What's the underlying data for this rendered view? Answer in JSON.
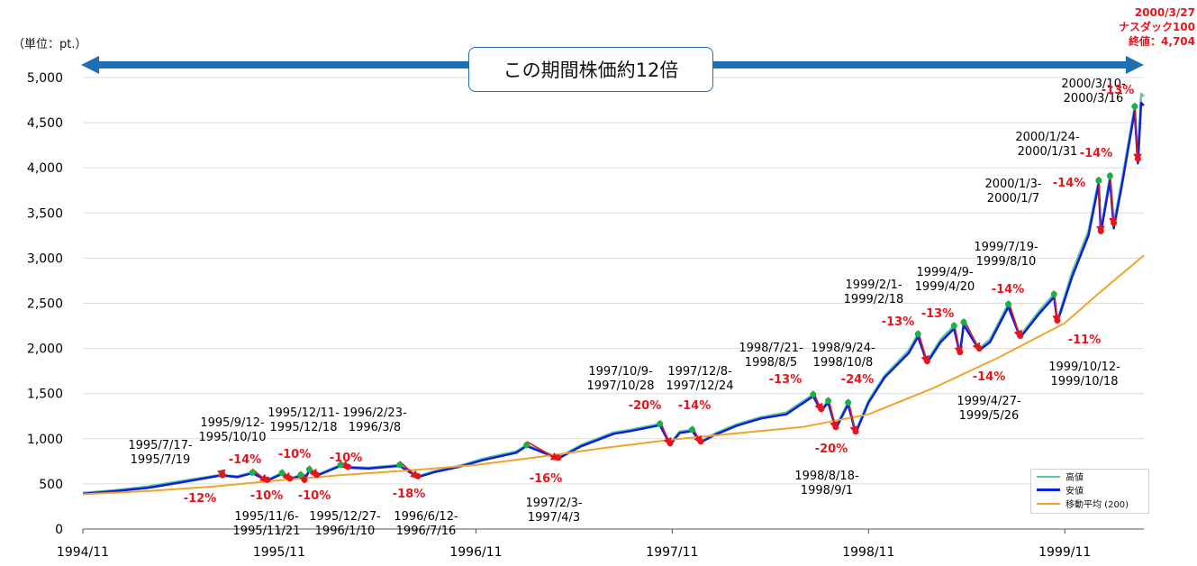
{
  "unit_label": "（単位：pt.）",
  "callout": "この期間株価約12倍",
  "final_note": [
    "2000/3/27",
    "ナスダック100",
    "終値：4,704"
  ],
  "legend": [
    {
      "label": "高値",
      "color": "#5fc3a6"
    },
    {
      "label": "安値",
      "color": "#0a1fe0"
    },
    {
      "label": "移動平均 (200)",
      "color": "#f2a32a"
    }
  ],
  "colors": {
    "high": "#5fc3a6",
    "low": "#0a1fe0",
    "ma": "#f2a32a",
    "arrow": "#e8141b",
    "peak": "#17b34a",
    "trough": "#e8141b",
    "band": "#1f6fb5"
  },
  "chart_data": {
    "type": "line",
    "ylim": [
      0,
      5000
    ],
    "yticks": [
      "0",
      "500",
      "1,000",
      "1,500",
      "2,000",
      "2,500",
      "3,000",
      "3,500",
      "4,000",
      "4,500",
      "5,000"
    ],
    "xlim": [
      "1994/11",
      "2000/3"
    ],
    "xticks": [
      "1994/11",
      "1995/11",
      "1996/11",
      "1997/11",
      "1998/11",
      "1999/11"
    ],
    "series": [
      {
        "name": "高値",
        "points": [
          [
            "1994/11/01",
            400
          ],
          [
            "1995/01/01",
            430
          ],
          [
            "1995/03/01",
            470
          ],
          [
            "1995/05/01",
            530
          ],
          [
            "1995/07/15",
            600
          ],
          [
            "1995/08/15",
            585
          ],
          [
            "1995/09/12",
            625
          ],
          [
            "1995/10/10",
            545
          ],
          [
            "1995/11/06",
            620
          ],
          [
            "1995/11/21",
            560
          ],
          [
            "1995/12/11",
            600
          ],
          [
            "1995/12/18",
            545
          ],
          [
            "1995/12/27",
            660
          ],
          [
            "1996/01/10",
            600
          ],
          [
            "1996/02/23",
            710
          ],
          [
            "1996/03/08",
            690
          ],
          [
            "1996/04/15",
            680
          ],
          [
            "1996/06/12",
            710
          ],
          [
            "1996/07/16",
            585
          ],
          [
            "1996/08/15",
            640
          ],
          [
            "1996/10/01",
            700
          ],
          [
            "1996/11/15",
            780
          ],
          [
            "1997/01/15",
            860
          ],
          [
            "1997/02/03",
            930
          ],
          [
            "1997/04/03",
            790
          ],
          [
            "1997/05/15",
            930
          ],
          [
            "1997/07/15",
            1070
          ],
          [
            "1997/08/15",
            1100
          ],
          [
            "1997/10/09",
            1165
          ],
          [
            "1997/10/28",
            950
          ],
          [
            "1997/11/15",
            1080
          ],
          [
            "1997/12/08",
            1100
          ],
          [
            "1997/12/24",
            970
          ],
          [
            "1998/01/20",
            1060
          ],
          [
            "1998/03/01",
            1160
          ],
          [
            "1998/04/15",
            1240
          ],
          [
            "1998/06/01",
            1290
          ],
          [
            "1998/07/21",
            1490
          ],
          [
            "1998/08/05",
            1330
          ],
          [
            "1998/08/18",
            1420
          ],
          [
            "1998/09/01",
            1130
          ],
          [
            "1998/09/24",
            1400
          ],
          [
            "1998/10/08",
            1080
          ],
          [
            "1998/11/01",
            1420
          ],
          [
            "1998/12/01",
            1700
          ],
          [
            "1999/01/15",
            1980
          ],
          [
            "1999/02/01",
            2160
          ],
          [
            "1999/02/18",
            1860
          ],
          [
            "1999/03/15",
            2100
          ],
          [
            "1999/04/09",
            2250
          ],
          [
            "1999/04/20",
            1960
          ],
          [
            "1999/04/27",
            2290
          ],
          [
            "1999/05/26",
            2000
          ],
          [
            "1999/06/15",
            2100
          ],
          [
            "1999/07/19",
            2490
          ],
          [
            "1999/08/10",
            2140
          ],
          [
            "1999/09/15",
            2420
          ],
          [
            "1999/10/12",
            2600
          ],
          [
            "1999/10/18",
            2310
          ],
          [
            "1999/11/15",
            2850
          ],
          [
            "1999/12/15",
            3300
          ],
          [
            "2000/01/03",
            3860
          ],
          [
            "2000/01/07",
            3300
          ],
          [
            "2000/01/24",
            3910
          ],
          [
            "2000/01/31",
            3390
          ],
          [
            "2000/02/15",
            3850
          ],
          [
            "2000/03/10",
            4680
          ],
          [
            "2000/03/16",
            4100
          ],
          [
            "2000/03/22",
            4820
          ],
          [
            "2000/03/27",
            4790
          ]
        ]
      },
      {
        "name": "安値",
        "points": [
          [
            "1994/11/01",
            390
          ],
          [
            "1995/01/01",
            420
          ],
          [
            "1995/03/01",
            455
          ],
          [
            "1995/05/01",
            515
          ],
          [
            "1995/07/17",
            595
          ],
          [
            "1995/08/15",
            575
          ],
          [
            "1995/09/12",
            620
          ],
          [
            "1995/10/10",
            535
          ],
          [
            "1995/11/06",
            610
          ],
          [
            "1995/11/21",
            550
          ],
          [
            "1995/12/11",
            590
          ],
          [
            "1995/12/18",
            535
          ],
          [
            "1995/12/27",
            650
          ],
          [
            "1996/01/10",
            590
          ],
          [
            "1996/02/23",
            700
          ],
          [
            "1996/03/08",
            680
          ],
          [
            "1996/04/15",
            670
          ],
          [
            "1996/06/12",
            700
          ],
          [
            "1996/07/16",
            575
          ],
          [
            "1996/08/15",
            630
          ],
          [
            "1996/10/01",
            690
          ],
          [
            "1996/11/15",
            765
          ],
          [
            "1997/01/15",
            845
          ],
          [
            "1997/02/03",
            920
          ],
          [
            "1997/04/03",
            780
          ],
          [
            "1997/05/15",
            915
          ],
          [
            "1997/07/15",
            1055
          ],
          [
            "1997/08/15",
            1085
          ],
          [
            "1997/10/09",
            1150
          ],
          [
            "1997/10/28",
            935
          ],
          [
            "1997/11/15",
            1065
          ],
          [
            "1997/12/08",
            1085
          ],
          [
            "1997/12/24",
            960
          ],
          [
            "1998/01/20",
            1045
          ],
          [
            "1998/03/01",
            1145
          ],
          [
            "1998/04/15",
            1225
          ],
          [
            "1998/06/01",
            1270
          ],
          [
            "1998/07/21",
            1470
          ],
          [
            "1998/08/05",
            1310
          ],
          [
            "1998/08/18",
            1400
          ],
          [
            "1998/09/01",
            1110
          ],
          [
            "1998/09/24",
            1380
          ],
          [
            "1998/10/08",
            1060
          ],
          [
            "1998/11/01",
            1400
          ],
          [
            "1998/12/01",
            1680
          ],
          [
            "1999/01/15",
            1950
          ],
          [
            "1999/02/01",
            2130
          ],
          [
            "1999/02/18",
            1840
          ],
          [
            "1999/03/15",
            2070
          ],
          [
            "1999/04/09",
            2220
          ],
          [
            "1999/04/20",
            1940
          ],
          [
            "1999/04/27",
            2260
          ],
          [
            "1999/05/26",
            1980
          ],
          [
            "1999/06/15",
            2070
          ],
          [
            "1999/07/19",
            2460
          ],
          [
            "1999/08/10",
            2120
          ],
          [
            "1999/09/15",
            2390
          ],
          [
            "1999/10/12",
            2570
          ],
          [
            "1999/10/18",
            2290
          ],
          [
            "1999/11/15",
            2800
          ],
          [
            "1999/12/15",
            3250
          ],
          [
            "2000/01/03",
            3820
          ],
          [
            "2000/01/07",
            3280
          ],
          [
            "2000/01/24",
            3860
          ],
          [
            "2000/01/31",
            3330
          ],
          [
            "2000/02/15",
            3800
          ],
          [
            "2000/03/10",
            4630
          ],
          [
            "2000/03/16",
            4050
          ],
          [
            "2000/03/22",
            4720
          ],
          [
            "2000/03/27",
            4690
          ]
        ]
      },
      {
        "name": "移動平均 (200)",
        "points": [
          [
            "1994/11/01",
            385
          ],
          [
            "1995/03/01",
            420
          ],
          [
            "1995/07/01",
            470
          ],
          [
            "1995/11/01",
            540
          ],
          [
            "1996/03/01",
            600
          ],
          [
            "1996/07/01",
            650
          ],
          [
            "1996/11/01",
            710
          ],
          [
            "1997/03/01",
            800
          ],
          [
            "1997/07/01",
            900
          ],
          [
            "1997/11/01",
            990
          ],
          [
            "1998/03/01",
            1060
          ],
          [
            "1998/07/01",
            1130
          ],
          [
            "1998/11/01",
            1270
          ],
          [
            "1999/03/01",
            1560
          ],
          [
            "1999/07/01",
            1900
          ],
          [
            "1999/11/01",
            2280
          ],
          [
            "2000/01/01",
            2600
          ],
          [
            "2000/03/27",
            3030
          ]
        ]
      }
    ],
    "drawdowns": [
      {
        "period": [
          "1995/7/17-",
          "1995/7/19"
        ],
        "pct": "-12%",
        "from": "1995/07/17",
        "to": "1995/07/19"
      },
      {
        "period": [
          "1995/9/12-",
          "1995/10/10"
        ],
        "pct": "-14%",
        "from": "1995/09/12",
        "to": "1995/10/10"
      },
      {
        "period": [
          "1995/11/6-",
          "1995/11/21"
        ],
        "pct": "-10%",
        "from": "1995/11/06",
        "to": "1995/11/21"
      },
      {
        "period": [
          "1995/12/11-",
          "1995/12/18"
        ],
        "pct": "-10%",
        "from": "1995/12/11",
        "to": "1995/12/18"
      },
      {
        "period": [
          "1995/12/27-",
          "1996/1/10"
        ],
        "pct": "-10%",
        "from": "1995/12/27",
        "to": "1996/01/10"
      },
      {
        "period": [
          "1996/2/23-",
          "1996/3/8"
        ],
        "pct": "-10%",
        "from": "1996/02/23",
        "to": "1996/03/08"
      },
      {
        "period": [
          "1996/6/12-",
          "1996/7/16"
        ],
        "pct": "-18%",
        "from": "1996/06/12",
        "to": "1996/07/16"
      },
      {
        "period": [
          "1997/2/3-",
          "1997/4/3"
        ],
        "pct": "-16%",
        "from": "1997/02/03",
        "to": "1997/04/03"
      },
      {
        "period": [
          "1997/10/9-",
          "1997/10/28"
        ],
        "pct": "-20%",
        "from": "1997/10/09",
        "to": "1997/10/28"
      },
      {
        "period": [
          "1997/12/8-",
          "1997/12/24"
        ],
        "pct": "-14%",
        "from": "1997/12/08",
        "to": "1997/12/24"
      },
      {
        "period": [
          "1998/7/21-",
          "1998/8/5"
        ],
        "pct": "-13%",
        "from": "1998/07/21",
        "to": "1998/08/05"
      },
      {
        "period": [
          "1998/8/18-",
          "1998/9/1"
        ],
        "pct": "-20%",
        "from": "1998/08/18",
        "to": "1998/09/01"
      },
      {
        "period": [
          "1998/9/24-",
          "1998/10/8"
        ],
        "pct": "-24%",
        "from": "1998/09/24",
        "to": "1998/10/08"
      },
      {
        "period": [
          "1999/2/1-",
          "1999/2/18"
        ],
        "pct": "-13%",
        "from": "1999/02/01",
        "to": "1999/02/18"
      },
      {
        "period": [
          "1999/4/9-",
          "1999/4/20"
        ],
        "pct": "-13%",
        "from": "1999/04/09",
        "to": "1999/04/20"
      },
      {
        "period": [
          "1999/4/27-",
          "1999/5/26"
        ],
        "pct": "-14%",
        "from": "1999/04/27",
        "to": "1999/05/26"
      },
      {
        "period": [
          "1999/7/19-",
          "1999/8/10"
        ],
        "pct": "-14%",
        "from": "1999/07/19",
        "to": "1999/08/10"
      },
      {
        "period": [
          "1999/10/12-",
          "1999/10/18"
        ],
        "pct": "-11%",
        "from": "1999/10/12",
        "to": "1999/10/18"
      },
      {
        "period": [
          "2000/1/3-",
          "2000/1/7"
        ],
        "pct": "-14%",
        "from": "2000/01/03",
        "to": "2000/01/07"
      },
      {
        "period": [
          "2000/1/24-",
          "2000/1/31"
        ],
        "pct": "-14%",
        "from": "2000/01/24",
        "to": "2000/01/31"
      },
      {
        "period": [
          "2000/3/10-",
          "2000/3/16"
        ],
        "pct": "-13%",
        "from": "2000/03/10",
        "to": "2000/03/16"
      }
    ]
  }
}
